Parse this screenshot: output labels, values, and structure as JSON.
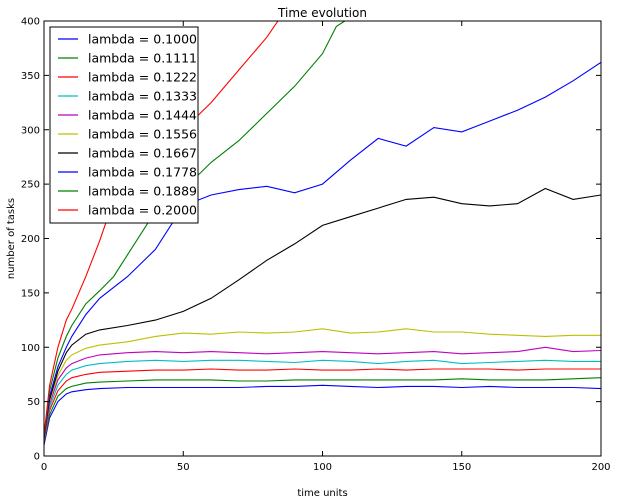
{
  "chart_data": {
    "type": "line",
    "title": "Time evolution",
    "xlabel": "time units",
    "ylabel": "number of tasks",
    "xlim": [
      0,
      200
    ],
    "ylim": [
      0,
      400
    ],
    "xticks": [
      0,
      50,
      100,
      150,
      200
    ],
    "yticks": [
      0,
      50,
      100,
      150,
      200,
      250,
      300,
      350,
      400
    ],
    "legend_position": "top-left",
    "grid": false,
    "series": [
      {
        "name": "lambda = 0.1000",
        "color": "#0000ff",
        "x": [
          0,
          2,
          5,
          8,
          10,
          15,
          20,
          30,
          40,
          50,
          60,
          70,
          80,
          90,
          100,
          110,
          120,
          130,
          140,
          150,
          160,
          170,
          180,
          190,
          200
        ],
        "y": [
          10,
          35,
          50,
          57,
          59,
          61,
          62,
          63,
          63,
          63,
          63,
          63,
          64,
          64,
          65,
          64,
          63,
          64,
          64,
          63,
          64,
          63,
          63,
          63,
          62
        ]
      },
      {
        "name": "lambda = 0.1111",
        "color": "#008000",
        "x": [
          0,
          2,
          5,
          8,
          10,
          15,
          20,
          30,
          40,
          50,
          60,
          70,
          80,
          90,
          100,
          110,
          120,
          130,
          140,
          150,
          160,
          170,
          180,
          190,
          200
        ],
        "y": [
          12,
          38,
          55,
          62,
          64,
          67,
          68,
          69,
          70,
          70,
          70,
          69,
          69,
          70,
          70,
          70,
          70,
          70,
          70,
          71,
          70,
          70,
          70,
          71,
          72
        ]
      },
      {
        "name": "lambda = 0.1222",
        "color": "#ff0000",
        "x": [
          0,
          2,
          5,
          8,
          10,
          15,
          20,
          30,
          40,
          50,
          60,
          70,
          80,
          90,
          100,
          110,
          120,
          130,
          140,
          150,
          160,
          170,
          180,
          190,
          200
        ],
        "y": [
          13,
          42,
          60,
          69,
          72,
          75,
          77,
          78,
          79,
          79,
          80,
          79,
          79,
          80,
          79,
          79,
          80,
          79,
          80,
          80,
          80,
          79,
          80,
          80,
          80
        ]
      },
      {
        "name": "lambda = 0.1333",
        "color": "#00bfbf",
        "x": [
          0,
          2,
          5,
          8,
          10,
          15,
          20,
          30,
          40,
          50,
          60,
          70,
          80,
          90,
          100,
          110,
          120,
          130,
          140,
          150,
          160,
          170,
          180,
          190,
          200
        ],
        "y": [
          14,
          45,
          65,
          75,
          79,
          83,
          85,
          87,
          88,
          87,
          88,
          88,
          87,
          86,
          88,
          87,
          85,
          87,
          88,
          85,
          86,
          87,
          88,
          87,
          87
        ]
      },
      {
        "name": "lambda = 0.1444",
        "color": "#bf00bf",
        "x": [
          0,
          2,
          5,
          8,
          10,
          15,
          20,
          30,
          40,
          50,
          60,
          70,
          80,
          90,
          100,
          110,
          120,
          130,
          140,
          150,
          160,
          170,
          180,
          190,
          200
        ],
        "y": [
          15,
          48,
          70,
          81,
          85,
          90,
          93,
          95,
          96,
          95,
          96,
          95,
          94,
          95,
          96,
          95,
          94,
          95,
          96,
          94,
          95,
          96,
          100,
          96,
          97
        ]
      },
      {
        "name": "lambda = 0.1556",
        "color": "#bfbf00",
        "x": [
          0,
          2,
          5,
          8,
          10,
          15,
          20,
          30,
          40,
          50,
          60,
          70,
          80,
          90,
          100,
          110,
          120,
          130,
          140,
          150,
          160,
          170,
          180,
          190,
          200
        ],
        "y": [
          16,
          50,
          74,
          88,
          93,
          99,
          102,
          105,
          110,
          113,
          112,
          114,
          113,
          114,
          117,
          113,
          114,
          117,
          114,
          114,
          112,
          111,
          110,
          111,
          111
        ]
      },
      {
        "name": "lambda = 0.1667",
        "color": "#000000",
        "x": [
          0,
          2,
          5,
          8,
          10,
          15,
          20,
          30,
          40,
          50,
          60,
          70,
          80,
          90,
          100,
          110,
          120,
          130,
          140,
          150,
          160,
          170,
          180,
          190,
          200
        ],
        "y": [
          16,
          52,
          78,
          95,
          102,
          112,
          116,
          120,
          125,
          133,
          145,
          162,
          180,
          195,
          212,
          220,
          228,
          236,
          238,
          232,
          230,
          232,
          246,
          236,
          240
        ]
      },
      {
        "name": "lambda = 0.1778",
        "color": "#0000ff",
        "x": [
          0,
          2,
          5,
          8,
          10,
          15,
          20,
          30,
          40,
          50,
          60,
          70,
          80,
          90,
          100,
          110,
          120,
          130,
          140,
          150,
          160,
          170,
          180,
          190,
          200
        ],
        "y": [
          17,
          55,
          82,
          100,
          110,
          130,
          145,
          165,
          190,
          230,
          240,
          245,
          248,
          242,
          250,
          272,
          292,
          285,
          302,
          298,
          308,
          318,
          330,
          345,
          362
        ]
      },
      {
        "name": "lambda = 0.1889",
        "color": "#008000",
        "x": [
          0,
          2,
          5,
          8,
          10,
          15,
          20,
          25,
          30,
          40,
          50,
          60,
          70,
          80,
          90,
          100,
          105,
          108
        ],
        "y": [
          18,
          60,
          90,
          110,
          120,
          140,
          152,
          165,
          185,
          225,
          245,
          270,
          290,
          315,
          340,
          370,
          395,
          400
        ]
      },
      {
        "name": "lambda = 0.2000",
        "color": "#ff0000",
        "x": [
          0,
          2,
          5,
          8,
          10,
          15,
          20,
          25,
          30,
          40,
          50,
          60,
          70,
          80,
          84
        ],
        "y": [
          19,
          65,
          100,
          125,
          135,
          165,
          198,
          235,
          255,
          285,
          300,
          325,
          355,
          385,
          400
        ]
      }
    ]
  }
}
